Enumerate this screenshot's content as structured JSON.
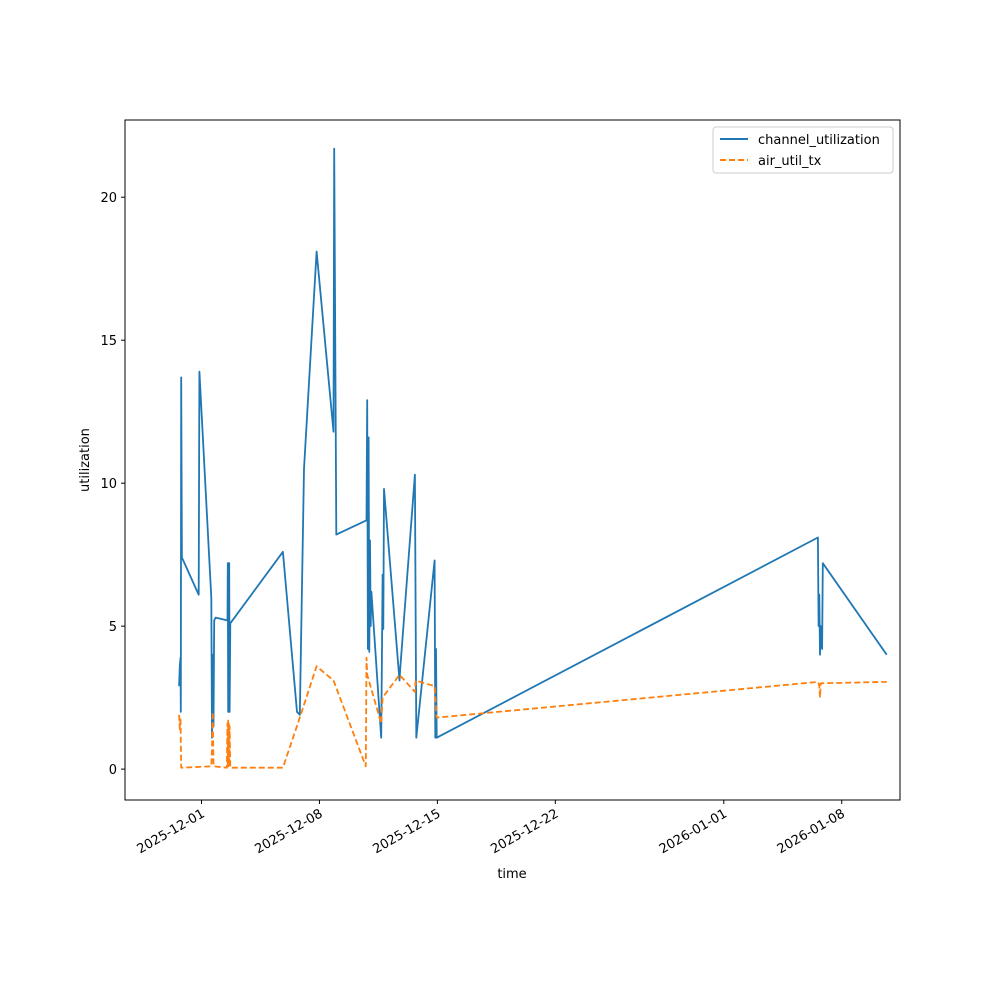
{
  "chart_data": {
    "type": "line",
    "title": "",
    "xlabel": "time",
    "ylabel": "utilization",
    "x_axis_type": "date",
    "xlim": [
      "2025-11-26T11:00",
      "2026-01-11T11:00"
    ],
    "ylim": [
      -1.08,
      22.7
    ],
    "x_ticks": [
      "2025-12-01",
      "2025-12-08",
      "2025-12-15",
      "2025-12-22",
      "2026-01-01",
      "2026-01-08"
    ],
    "y_ticks": [
      0,
      5,
      10,
      15,
      20
    ],
    "grid": false,
    "legend_position": "top-right",
    "series": [
      {
        "name": "channel_utilization",
        "color": "#1f77b4",
        "line_style": "solid",
        "points": [
          [
            "2025-11-29T16:00",
            2.9
          ],
          [
            "2025-11-29T17:00",
            3.6
          ],
          [
            "2025-11-29T18:00",
            3.9
          ],
          [
            "2025-11-29T18:30",
            2.0
          ],
          [
            "2025-11-29T19:00",
            13.7
          ],
          [
            "2025-11-29T20:00",
            7.4
          ],
          [
            "2025-11-30T20:00",
            6.1
          ],
          [
            "2025-11-30T21:00",
            13.9
          ],
          [
            "2025-12-01T14:00",
            6.0
          ],
          [
            "2025-12-01T15:00",
            1.1
          ],
          [
            "2025-12-01T16:00",
            4.0
          ],
          [
            "2025-12-01T17:00",
            1.5
          ],
          [
            "2025-12-01T18:00",
            5.2
          ],
          [
            "2025-12-01T20:00",
            5.3
          ],
          [
            "2025-12-02T13:00",
            5.2
          ],
          [
            "2025-12-02T13:30",
            7.2
          ],
          [
            "2025-12-02T14:00",
            2.0
          ],
          [
            "2025-12-02T14:30",
            7.2
          ],
          [
            "2025-12-02T15:00",
            2.0
          ],
          [
            "2025-12-02T15:30",
            7.2
          ],
          [
            "2025-12-02T16:00",
            2.0
          ],
          [
            "2025-12-02T17:00",
            5.1
          ],
          [
            "2025-12-05T20:00",
            7.6
          ],
          [
            "2025-12-06T16:00",
            2.0
          ],
          [
            "2025-12-06T20:00",
            1.9
          ],
          [
            "2025-12-07T02:00",
            10.5
          ],
          [
            "2025-12-07T20:00",
            18.1
          ],
          [
            "2025-12-08T20:00",
            11.8
          ],
          [
            "2025-12-08T21:00",
            21.7
          ],
          [
            "2025-12-09T00:00",
            8.2
          ],
          [
            "2025-12-10T19:00",
            8.7
          ],
          [
            "2025-12-10T20:00",
            12.9
          ],
          [
            "2025-12-10T21:00",
            4.2
          ],
          [
            "2025-12-10T22:00",
            11.6
          ],
          [
            "2025-12-10T23:00",
            4.1
          ],
          [
            "2025-12-11T00:00",
            8.0
          ],
          [
            "2025-12-11T01:00",
            5.0
          ],
          [
            "2025-12-11T02:00",
            6.2
          ],
          [
            "2025-12-11T16:00",
            1.1
          ],
          [
            "2025-12-11T17:00",
            3.8
          ],
          [
            "2025-12-11T18:00",
            6.8
          ],
          [
            "2025-12-11T19:00",
            4.9
          ],
          [
            "2025-12-11T20:00",
            9.8
          ],
          [
            "2025-12-12T18:00",
            3.1
          ],
          [
            "2025-12-12T19:00",
            3.5
          ],
          [
            "2025-12-13T16:00",
            10.3
          ],
          [
            "2025-12-13T18:00",
            1.1
          ],
          [
            "2025-12-14T20:00",
            7.3
          ],
          [
            "2025-12-14T21:00",
            1.1
          ],
          [
            "2025-12-14T22:00",
            4.2
          ],
          [
            "2025-12-14T23:00",
            1.1
          ],
          [
            "2026-01-06T14:00",
            8.1
          ],
          [
            "2026-01-06T15:00",
            5.0
          ],
          [
            "2026-01-06T16:00",
            6.1
          ],
          [
            "2026-01-06T17:00",
            4.0
          ],
          [
            "2026-01-06T18:00",
            5.0
          ],
          [
            "2026-01-06T20:00",
            4.2
          ],
          [
            "2026-01-06T21:00",
            7.2
          ],
          [
            "2026-01-10T16:00",
            4.0
          ]
        ]
      },
      {
        "name": "air_util_tx",
        "color": "#ff7f0e",
        "line_style": "dashed",
        "points": [
          [
            "2025-11-29T16:00",
            1.9
          ],
          [
            "2025-11-29T17:00",
            1.4
          ],
          [
            "2025-11-29T18:00",
            1.8
          ],
          [
            "2025-11-29T19:00",
            0.05
          ],
          [
            "2025-12-01T14:00",
            0.1
          ],
          [
            "2025-12-01T15:00",
            0.7
          ],
          [
            "2025-12-01T16:00",
            2.0
          ],
          [
            "2025-12-01T17:00",
            0.1
          ],
          [
            "2025-12-02T12:00",
            0.05
          ],
          [
            "2025-12-02T13:00",
            1.6
          ],
          [
            "2025-12-02T13:30",
            0.1
          ],
          [
            "2025-12-02T14:00",
            1.7
          ],
          [
            "2025-12-02T14:30",
            0.1
          ],
          [
            "2025-12-02T15:00",
            1.6
          ],
          [
            "2025-12-02T15:30",
            0.1
          ],
          [
            "2025-12-02T16:00",
            1.5
          ],
          [
            "2025-12-02T17:00",
            0.05
          ],
          [
            "2025-12-05T20:00",
            0.05
          ],
          [
            "2025-12-06T20:00",
            1.8
          ],
          [
            "2025-12-07T20:00",
            3.6
          ],
          [
            "2025-12-08T20:00",
            3.1
          ],
          [
            "2025-12-10T18:00",
            0.1
          ],
          [
            "2025-12-10T19:00",
            3.9
          ],
          [
            "2025-12-10T20:00",
            3.3
          ],
          [
            "2025-12-11T16:00",
            1.6
          ],
          [
            "2025-12-11T18:00",
            2.5
          ],
          [
            "2025-12-12T18:00",
            3.3
          ],
          [
            "2025-12-13T16:00",
            2.7
          ],
          [
            "2025-12-13T17:00",
            3.1
          ],
          [
            "2025-12-14T20:00",
            2.9
          ],
          [
            "2025-12-14T23:00",
            1.8
          ],
          [
            "2026-01-06T14:00",
            3.05
          ],
          [
            "2026-01-06T15:00",
            3.0
          ],
          [
            "2026-01-06T16:00",
            2.9
          ],
          [
            "2026-01-06T17:00",
            2.5
          ],
          [
            "2026-01-06T18:00",
            3.0
          ],
          [
            "2026-01-10T16:00",
            3.05
          ]
        ]
      }
    ]
  }
}
